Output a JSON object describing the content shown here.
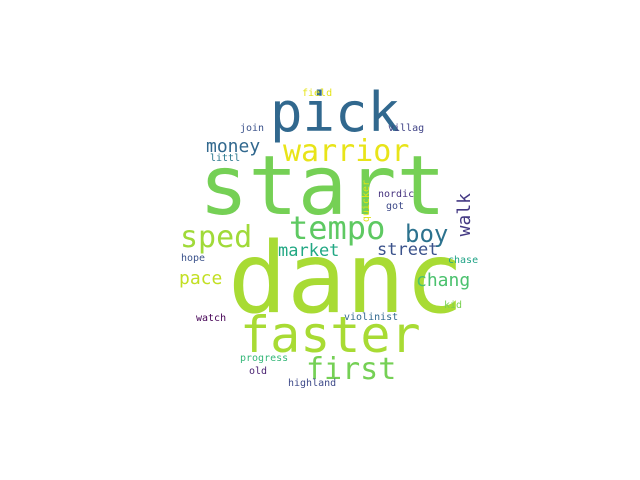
{
  "words": [
    {
      "text": "start",
      "color": "#75d055"
    },
    {
      "text": "danc",
      "color": "#a8db34"
    },
    {
      "text": "pick",
      "color": "#31688e"
    },
    {
      "text": "faster",
      "color": "#a8db34"
    },
    {
      "text": "warrior",
      "color": "#e8e419"
    },
    {
      "text": "tempo",
      "color": "#5ec962"
    },
    {
      "text": "sped",
      "color": "#a0da39"
    },
    {
      "text": "boy",
      "color": "#2c728e"
    },
    {
      "text": "first",
      "color": "#75d055"
    },
    {
      "text": "money",
      "color": "#31688e"
    },
    {
      "text": "market",
      "color": "#22a884"
    },
    {
      "text": "street",
      "color": "#3b528b"
    },
    {
      "text": "walk",
      "color": "#443983"
    },
    {
      "text": "chang",
      "color": "#4ac16d"
    },
    {
      "text": "pace",
      "color": "#c2df23"
    },
    {
      "text": "field",
      "color": "#e5e419"
    },
    {
      "text": "join",
      "color": "#3b528b"
    },
    {
      "text": "villag",
      "color": "#414487"
    },
    {
      "text": "littl",
      "color": "#2a788e"
    },
    {
      "text": "nordic",
      "color": "#46327e"
    },
    {
      "text": "got",
      "color": "#3e4a89"
    },
    {
      "text": "quicker",
      "color": "#dde318"
    },
    {
      "text": "hope",
      "color": "#3b528b"
    },
    {
      "text": "chase",
      "color": "#20a386"
    },
    {
      "text": "kid",
      "color": "#7ad151"
    },
    {
      "text": "watch",
      "color": "#440154"
    },
    {
      "text": "violinist",
      "color": "#31688e"
    },
    {
      "text": "progress",
      "color": "#35b779"
    },
    {
      "text": "old",
      "color": "#481f70"
    },
    {
      "text": "highland",
      "color": "#3e4a89"
    }
  ]
}
